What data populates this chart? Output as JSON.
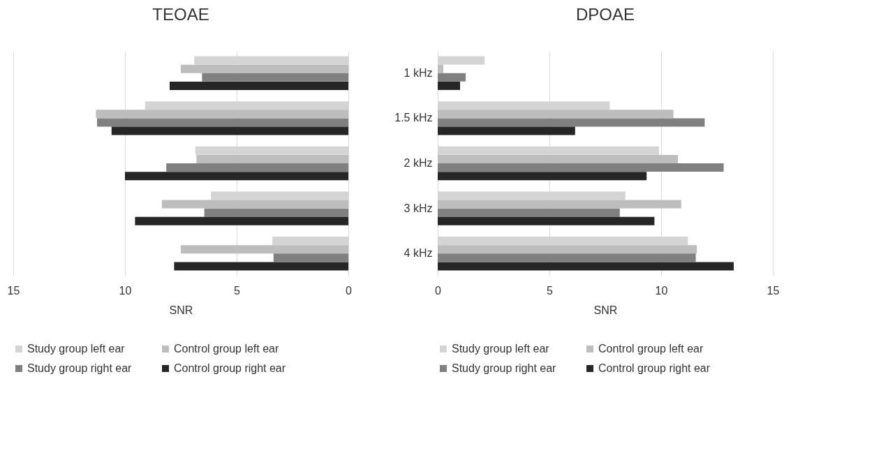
{
  "chart_data": [
    {
      "type": "bar",
      "orientation": "horizontal",
      "title": "TEOAE",
      "xlabel": "SNR",
      "categories": [
        null,
        null,
        null,
        null,
        null
      ],
      "xlim": [
        15,
        0
      ],
      "xticks": [
        15,
        10,
        5,
        0
      ],
      "grid": "x",
      "legend": "bottom",
      "tick_labels": "x",
      "series": [
        {
          "name": "Study group left ear",
          "color": "#d4d4d4",
          "values": [
            6.9,
            9.1,
            6.85,
            6.15,
            3.4
          ]
        },
        {
          "name": "Control group left  ear",
          "color": "#bdbdbd",
          "values": [
            7.5,
            11.3,
            6.8,
            8.35,
            7.5
          ]
        },
        {
          "name": "Study group right ear",
          "color": "#808080",
          "values": [
            6.55,
            11.25,
            8.15,
            6.45,
            3.35
          ]
        },
        {
          "name": "Control group right ear",
          "color": "#262626",
          "values": [
            8.0,
            10.6,
            10.0,
            9.55,
            7.8
          ]
        }
      ]
    },
    {
      "type": "bar",
      "orientation": "horizontal",
      "title": "DPOAE",
      "xlabel": "SNR",
      "categories": [
        "1 kHz",
        "1.5 kHz",
        "2 kHz",
        "3 kHz",
        "4 kHz"
      ],
      "xlim": [
        0,
        15
      ],
      "xticks": [
        0,
        5,
        10,
        15
      ],
      "grid": "x",
      "legend": "bottom",
      "series": [
        {
          "name": "Study group left ear",
          "color": "#d4d4d4",
          "values": [
            2.1,
            7.7,
            9.9,
            8.4,
            11.2
          ]
        },
        {
          "name": "Control group left  ear",
          "color": "#bdbdbd",
          "values": [
            0.25,
            10.55,
            10.75,
            10.9,
            11.6
          ]
        },
        {
          "name": "Study group right ear",
          "color": "#808080",
          "values": [
            1.25,
            11.95,
            12.8,
            8.15,
            11.55
          ]
        },
        {
          "name": "Control group right ear",
          "color": "#262626",
          "values": [
            1.0,
            6.15,
            9.35,
            9.7,
            13.25
          ]
        }
      ]
    }
  ]
}
